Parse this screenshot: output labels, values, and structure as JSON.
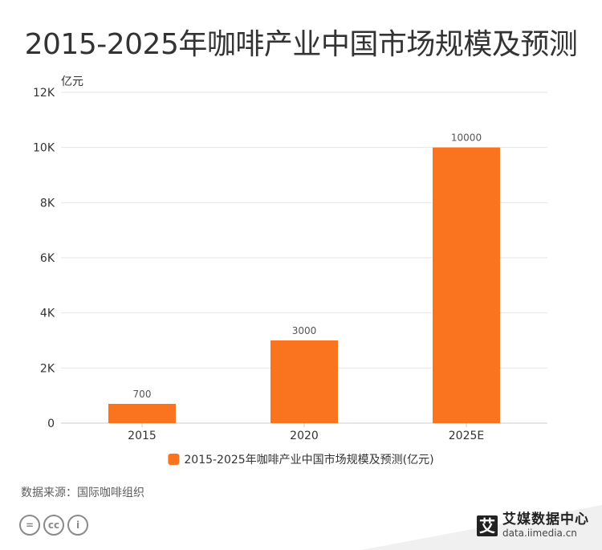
{
  "title": "2015-2025年咖啡产业中国市场规模及预测",
  "source_text": "数据来源：国际咖啡组织",
  "brand": {
    "name": "艾媒数据中心",
    "url": "data.iimedia.cn",
    "logo_char": "艾"
  },
  "license_icons": [
    "cc-equal-icon",
    "cc-icon",
    "cc-person-icon"
  ],
  "colors": {
    "bar": "#fa731f",
    "grid": "#e6e6e6",
    "axis": "#cccccc",
    "text": "#333333"
  },
  "chart_data": {
    "type": "bar",
    "categories": [
      "2015",
      "2020",
      "2025E"
    ],
    "series": [
      {
        "name": "2015-2025年咖啡产业中国市场规模及预测(亿元)",
        "values": [
          700,
          3000,
          10000
        ]
      }
    ],
    "data_labels": [
      "700",
      "3000",
      "10000"
    ],
    "ylabel": "亿元",
    "ylim": [
      0,
      12000
    ],
    "yticks": [
      0,
      2000,
      4000,
      6000,
      8000,
      10000,
      12000
    ],
    "ytick_labels": [
      "0",
      "2K",
      "4K",
      "6K",
      "8K",
      "10K",
      "12K"
    ],
    "grid": true,
    "legend": "bottom-center"
  }
}
